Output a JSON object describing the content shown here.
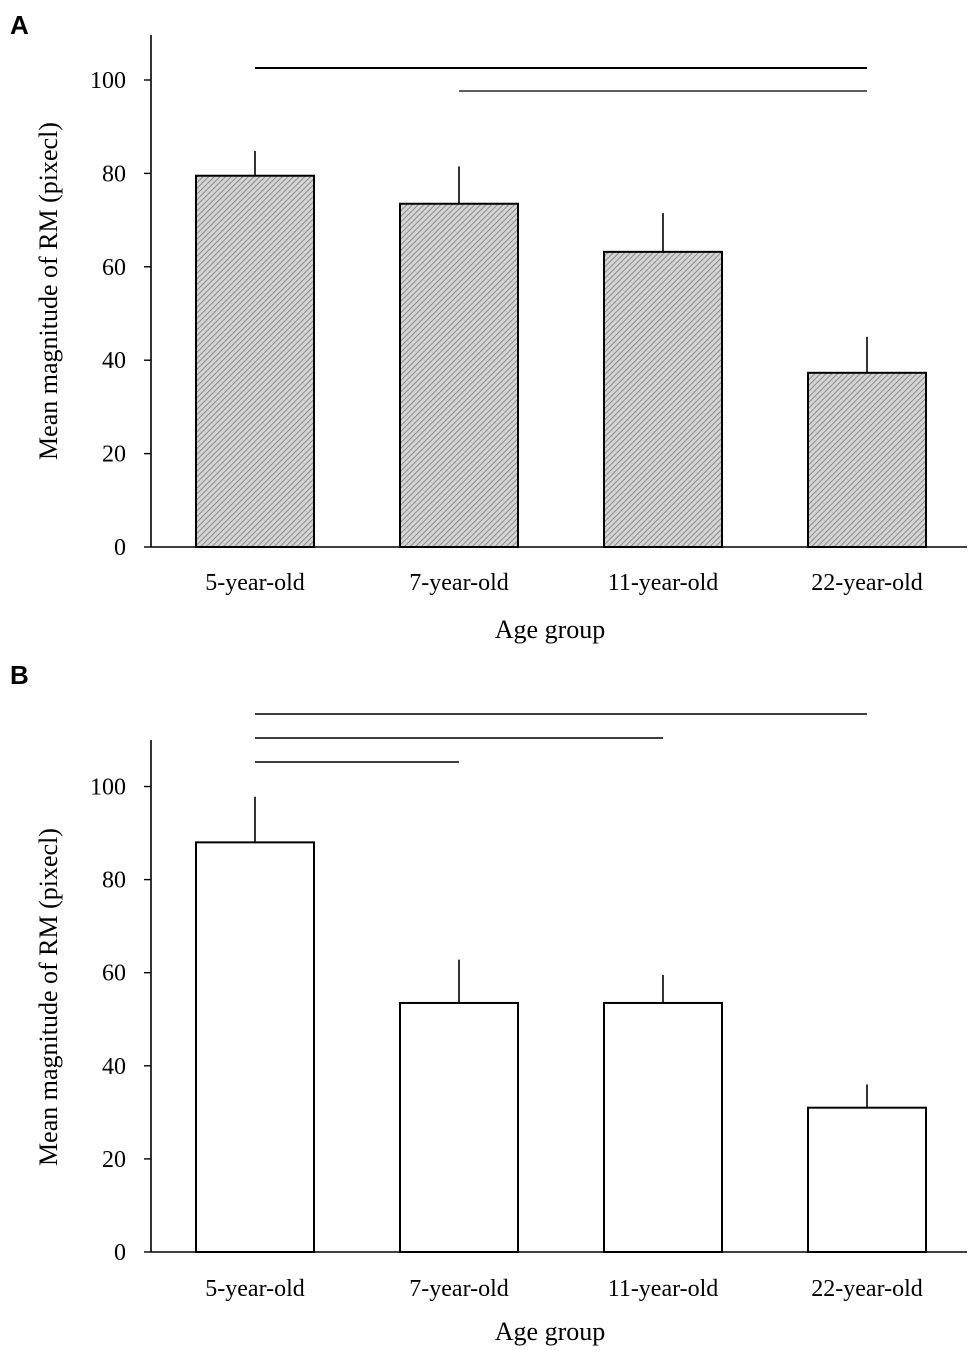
{
  "chart_data": [
    {
      "panel": "A",
      "type": "bar",
      "fill": "hatched",
      "xlabel": "Age group",
      "ylabel": "Mean magnitude of RM (pixecl)",
      "categories": [
        "5-year-old",
        "7-year-old",
        "11-year-old",
        "22-year-old"
      ],
      "values": [
        79.5,
        73.5,
        63.2,
        37.3
      ],
      "errors": [
        5.3,
        8.0,
        8.3,
        7.7
      ],
      "ylim": [
        0,
        110
      ],
      "yticks": [
        0,
        20,
        40,
        60,
        80,
        100
      ],
      "significance": [
        {
          "from": "5-year-old",
          "to": "22-year-old"
        },
        {
          "from": "7-year-old",
          "to": "22-year-old"
        }
      ]
    },
    {
      "panel": "B",
      "type": "bar",
      "fill": "open",
      "xlabel": "Age group",
      "ylabel": "Mean magnitude of RM (pixecl)",
      "categories": [
        "5-year-old",
        "7-year-old",
        "11-year-old",
        "22-year-old"
      ],
      "values": [
        88.0,
        53.5,
        53.5,
        31.0
      ],
      "errors": [
        9.8,
        9.3,
        6.0,
        5.0
      ],
      "ylim": [
        0,
        110
      ],
      "yticks": [
        0,
        20,
        40,
        60,
        80,
        100
      ],
      "significance": [
        {
          "from": "5-year-old",
          "to": "22-year-old"
        },
        {
          "from": "5-year-old",
          "to": "11-year-old"
        },
        {
          "from": "5-year-old",
          "to": "7-year-old"
        }
      ]
    }
  ],
  "colors": {
    "axis": "#000000",
    "bar_border": "#000000",
    "bar_fill_open": "#ffffff",
    "hatch_bg": "#d4d4d4",
    "hatch_line": "#7a7a7a",
    "significance_line": "#000000"
  }
}
